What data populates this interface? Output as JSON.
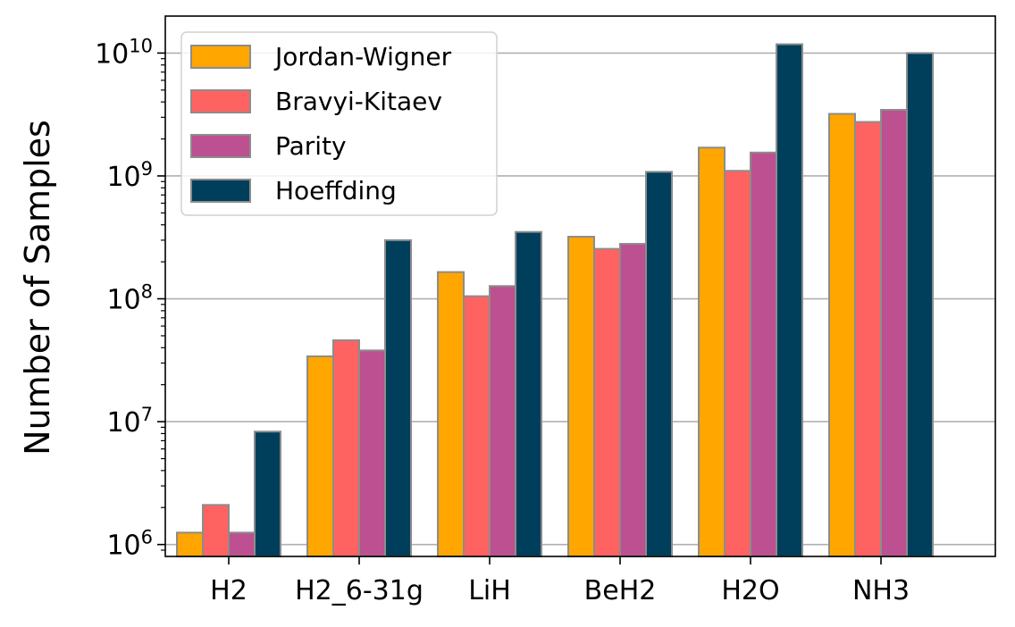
{
  "chart_data": {
    "type": "bar",
    "title": "",
    "xlabel": "",
    "ylabel": "Number of Samples",
    "yscale": "log",
    "ylim": [
      800000,
      20000000000
    ],
    "grid": "y-major",
    "legend_position": "top-left",
    "categories": [
      "H2",
      "H2_6-31g",
      "LiH",
      "BeH2",
      "H2O",
      "NH3"
    ],
    "yticks": [
      {
        "value": 1000000,
        "base": "10",
        "exp": "6"
      },
      {
        "value": 10000000,
        "base": "10",
        "exp": "7"
      },
      {
        "value": 100000000,
        "base": "10",
        "exp": "8"
      },
      {
        "value": 1000000000,
        "base": "10",
        "exp": "9"
      },
      {
        "value": 10000000000,
        "base": "10",
        "exp": "10"
      }
    ],
    "series": [
      {
        "name": "Jordan-Wigner",
        "color": "#FFA600",
        "values": [
          1250000,
          34000000,
          165000000,
          320000000,
          1700000000,
          3200000000
        ]
      },
      {
        "name": "Bravyi-Kitaev",
        "color": "#FF6361",
        "values": [
          2100000,
          46000000,
          105000000,
          255000000,
          1100000000,
          2750000000
        ]
      },
      {
        "name": "Parity",
        "color": "#BC5090",
        "values": [
          1250000,
          38000000,
          127000000,
          280000000,
          1550000000,
          3450000000
        ]
      },
      {
        "name": "Hoeffding",
        "color": "#003F5C",
        "values": [
          8300000,
          300000000,
          350000000,
          1080000000,
          11800000000,
          10000000000
        ]
      }
    ]
  }
}
